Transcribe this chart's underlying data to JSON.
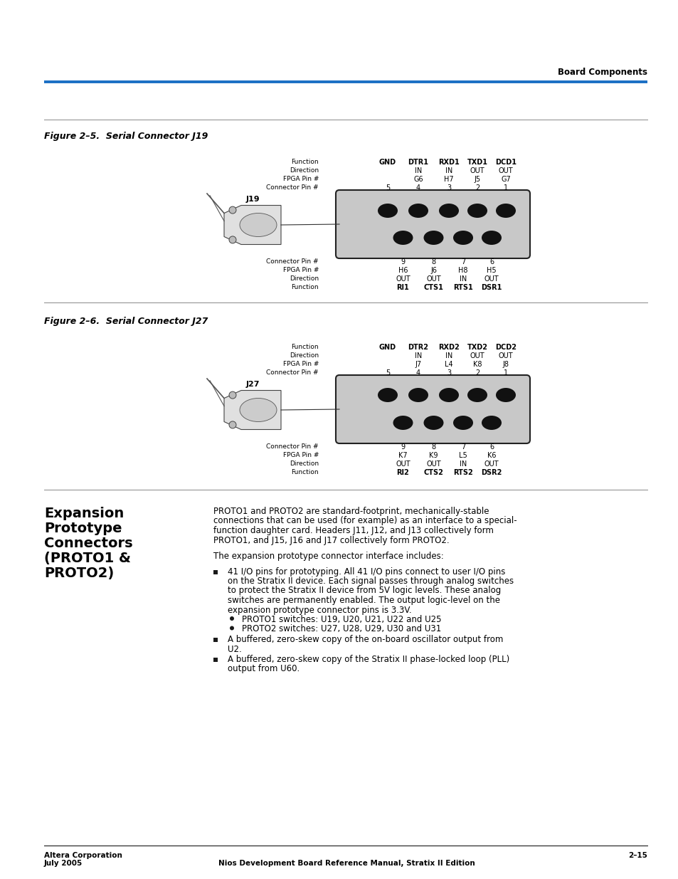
{
  "page_bg": "#ffffff",
  "header_right": "Board Components",
  "blue_line_color": "#1a6fc4",
  "footer_left_line1": "Altera Corporation",
  "footer_left_line2": "July 2005",
  "footer_center": "Nios Development Board Reference Manual, Stratix II Edition",
  "footer_right": "2–15",
  "fig1_title": "Figure 2–5.  Serial Connector J19",
  "fig2_title": "Figure 2–6.  Serial Connector J27",
  "section_title_lines": [
    "Expansion",
    "Prototype",
    "Connectors",
    "(PROTO1 &",
    "PROTO2)"
  ],
  "fig1_func_top": [
    "GND",
    "DTR1",
    "RXD1",
    "TXD1",
    "DCD1"
  ],
  "fig1_dir_top": [
    "",
    "IN",
    "IN",
    "OUT",
    "OUT"
  ],
  "fig1_fpga_top": [
    "G6",
    "H7",
    "J5",
    "G7"
  ],
  "fig1_conn_top": [
    "5",
    "4",
    "3",
    "2",
    "1"
  ],
  "fig1_conn_bot": [
    "9",
    "8",
    "7",
    "6"
  ],
  "fig1_fpga_bot": [
    "H6",
    "J6",
    "H8",
    "H5"
  ],
  "fig1_dir_bot": [
    "OUT",
    "OUT",
    "IN",
    "OUT"
  ],
  "fig1_func_bot": [
    "RI1",
    "CTS1",
    "RTS1",
    "DSR1"
  ],
  "fig2_func_top": [
    "GND",
    "DTR2",
    "RXD2",
    "TXD2",
    "DCD2"
  ],
  "fig2_dir_top": [
    "",
    "IN",
    "IN",
    "OUT",
    "OUT"
  ],
  "fig2_fpga_top": [
    "J7",
    "L4",
    "K8",
    "J8"
  ],
  "fig2_conn_top": [
    "5",
    "4",
    "3",
    "2",
    "1"
  ],
  "fig2_conn_bot": [
    "9",
    "8",
    "7",
    "6"
  ],
  "fig2_fpga_bot": [
    "K7",
    "K9",
    "L5",
    "K6"
  ],
  "fig2_dir_bot": [
    "OUT",
    "OUT",
    "IN",
    "OUT"
  ],
  "fig2_func_bot": [
    "RI2",
    "CTS2",
    "RTS2",
    "DSR2"
  ],
  "para1": [
    "PROTO1 and PROTO2 are standard-footprint, mechanically-stable",
    "connections that can be used (for example) as an interface to a special-",
    "function daughter card. Headers J11, J12, and J13 collectively form",
    "PROTO1, and J15, J16 and J17 collectively form PROTO2."
  ],
  "para2": "The expansion prototype connector interface includes:",
  "bullet1_lines": [
    "41 I/O pins for prototyping. All 41 I/O pins connect to user I/O pins",
    "on the Stratix II device. Each signal passes through analog switches",
    "to protect the Stratix II device from 5V logic levels. These analog",
    "switches are permanently enabled. The output logic-level on the",
    "expansion prototype connector pins is 3.3V."
  ],
  "sub_bullet1": "PROTO1 switches: U19, U20, U21, U22 and U25",
  "sub_bullet2": "PROTO2 switches: U27, U28, U29, U30 and U31",
  "bullet2_lines": [
    "A buffered, zero-skew copy of the on-board oscillator output from",
    "U2."
  ],
  "bullet3_lines": [
    "A buffered, zero-skew copy of the Stratix II phase-locked loop (PLL)",
    "output from U60."
  ]
}
